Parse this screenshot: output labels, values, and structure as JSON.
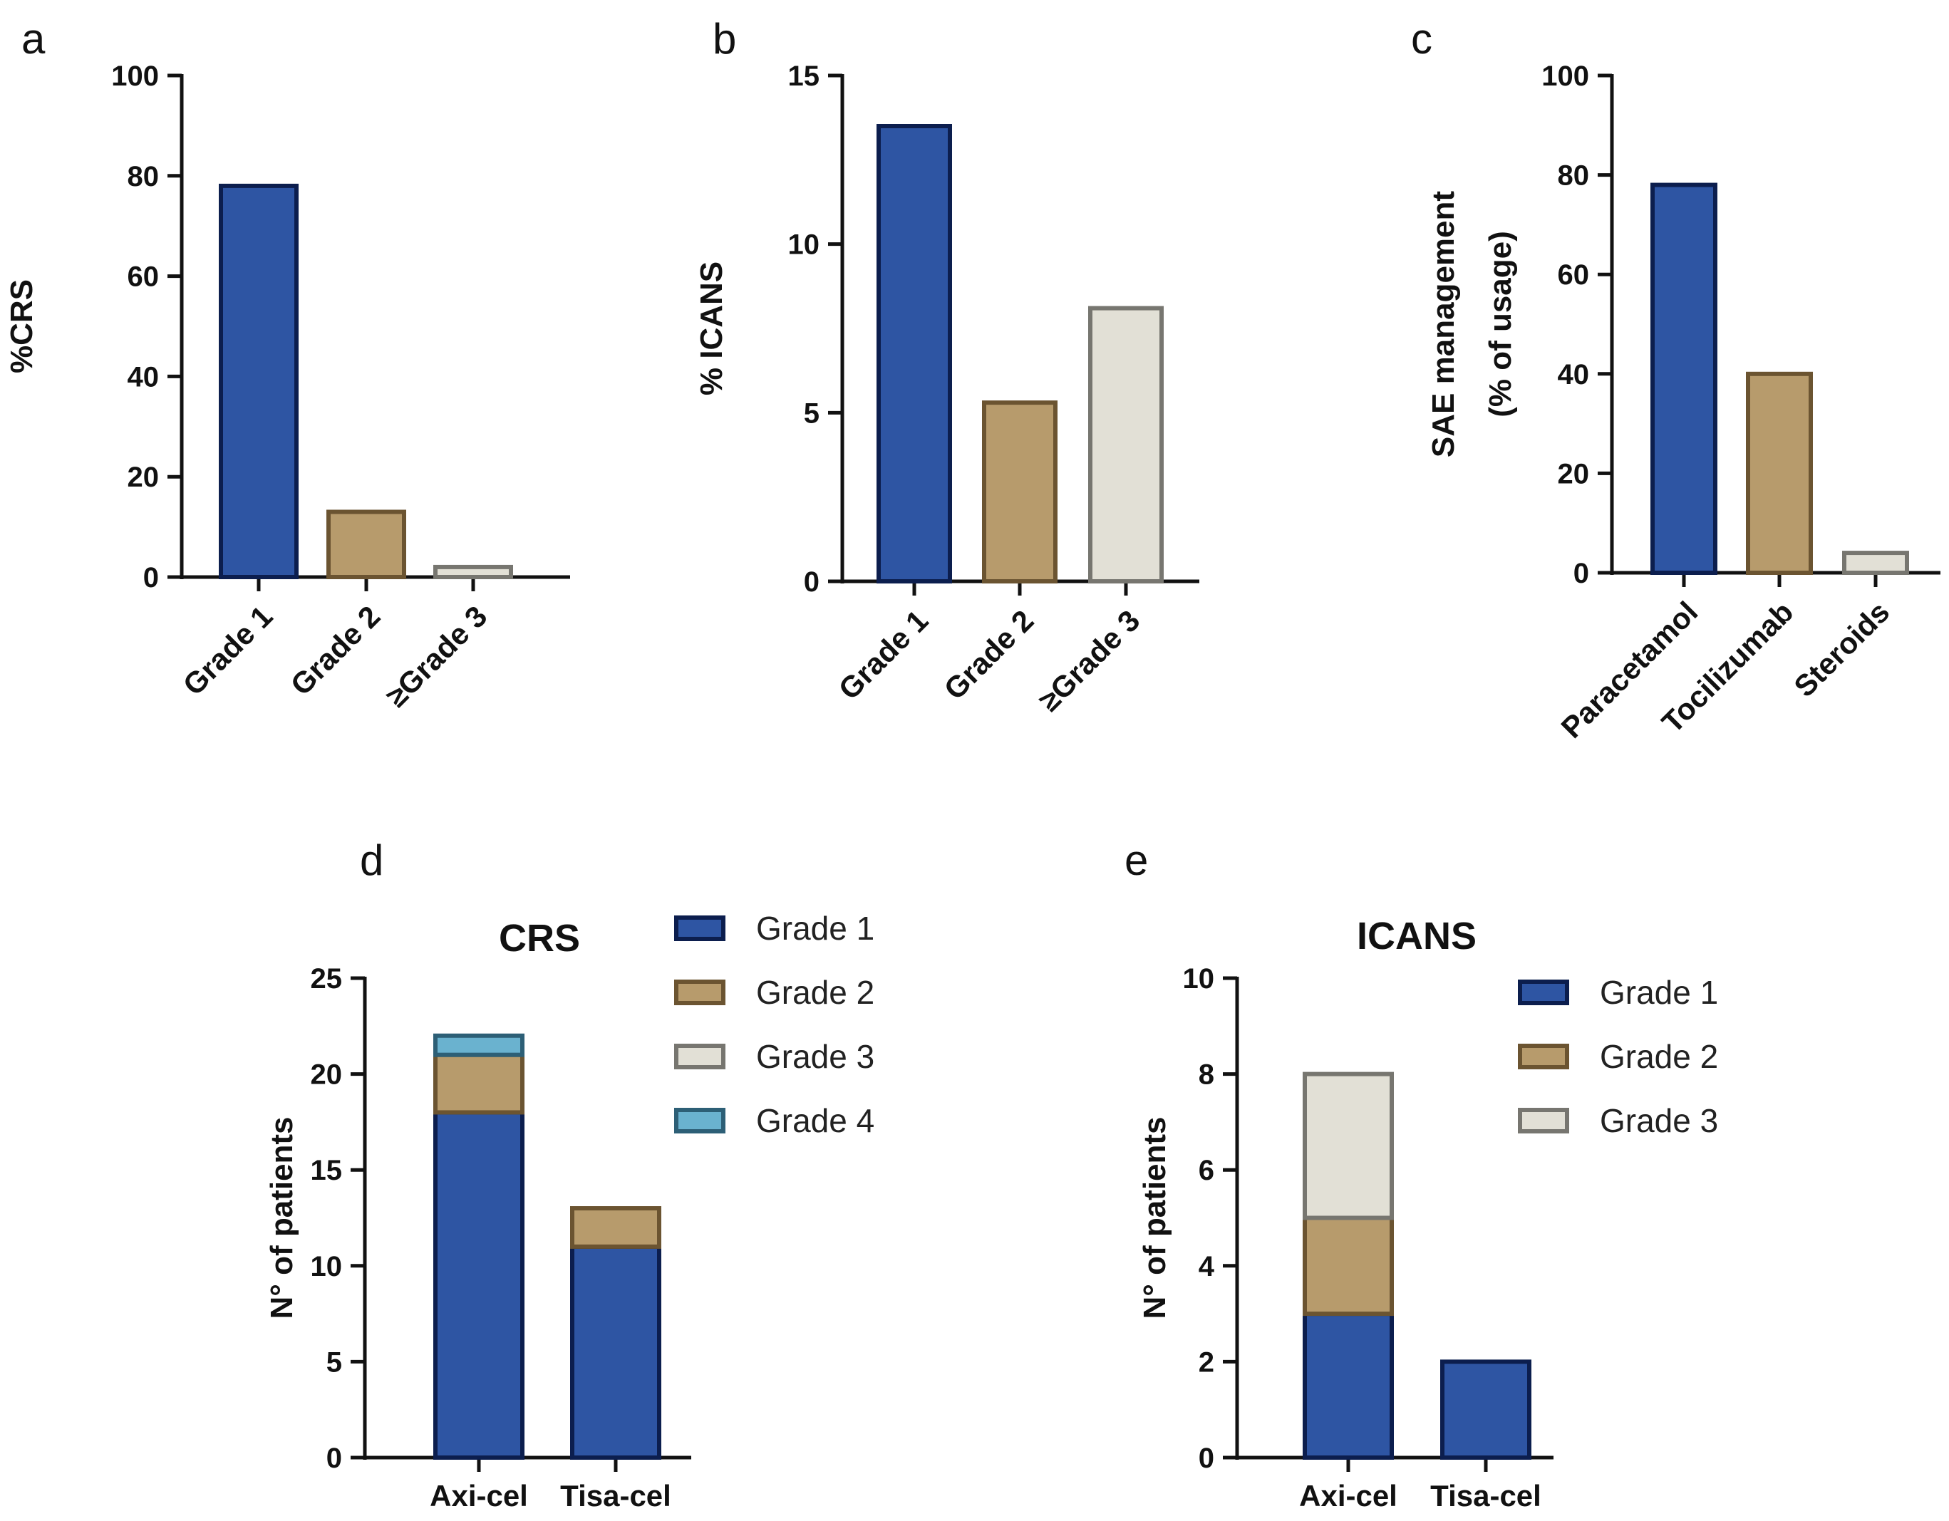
{
  "colors": {
    "grade1": "#2e55a3",
    "grade2": "#b79b6c",
    "grade3": "#e2e0d6",
    "grade4": "#6ab2cf",
    "grade1_edge": "#0c1e4e",
    "grade2_edge": "#6b5431",
    "grade3_edge": "#777670",
    "grade4_edge": "#2d5f76",
    "axis": "#111111"
  },
  "chart_data": [
    {
      "id": "a",
      "type": "bar",
      "panel_label": "a",
      "ylabel": "%CRS",
      "ylim": [
        0,
        100
      ],
      "yticks": [
        0,
        20,
        40,
        60,
        80,
        100
      ],
      "categories": [
        "Grade 1",
        "Grade 2",
        "≥Grade 3"
      ],
      "values": [
        78,
        13,
        2
      ],
      "series_keys": [
        "grade1",
        "grade2",
        "grade3"
      ]
    },
    {
      "id": "b",
      "type": "bar",
      "panel_label": "b",
      "ylabel": "% ICANS",
      "ylim": [
        0,
        15
      ],
      "yticks": [
        0,
        5,
        10,
        15
      ],
      "categories": [
        "Grade 1",
        "Grade 2",
        "≥Grade 3"
      ],
      "values": [
        13.5,
        5.3,
        8.1
      ],
      "series_keys": [
        "grade1",
        "grade2",
        "grade3"
      ]
    },
    {
      "id": "c",
      "type": "bar",
      "panel_label": "c",
      "ylabel_lines": [
        "SAE management",
        "(% of usage)"
      ],
      "ylim": [
        0,
        100
      ],
      "yticks": [
        0,
        20,
        40,
        60,
        80,
        100
      ],
      "categories": [
        "Paracetamol",
        "Tocilizumab",
        "Steroids"
      ],
      "values": [
        78,
        40,
        4
      ],
      "series_keys": [
        "grade1",
        "grade2",
        "grade3"
      ]
    },
    {
      "id": "d",
      "type": "bar",
      "stacked": true,
      "panel_label": "d",
      "title": "CRS",
      "ylabel": "N° of patients",
      "ylim": [
        0,
        25
      ],
      "yticks": [
        0,
        5,
        10,
        15,
        20,
        25
      ],
      "categories": [
        "Axi-cel",
        "Tisa-cel"
      ],
      "series": [
        {
          "name": "Grade 1",
          "key": "grade1",
          "values": [
            18,
            11
          ]
        },
        {
          "name": "Grade 2",
          "key": "grade2",
          "values": [
            3,
            2
          ]
        },
        {
          "name": "Grade 3",
          "key": "grade3",
          "values": [
            0,
            0
          ]
        },
        {
          "name": "Grade 4",
          "key": "grade4",
          "values": [
            1,
            0
          ]
        }
      ],
      "legend": "top-right"
    },
    {
      "id": "e",
      "type": "bar",
      "stacked": true,
      "panel_label": "e",
      "title": "ICANS",
      "ylabel": "N° of patients",
      "ylim": [
        0,
        10
      ],
      "yticks": [
        0,
        2,
        4,
        6,
        8,
        10
      ],
      "categories": [
        "Axi-cel",
        "Tisa-cel"
      ],
      "series": [
        {
          "name": "Grade 1",
          "key": "grade1",
          "values": [
            3,
            2
          ]
        },
        {
          "name": "Grade 2",
          "key": "grade2",
          "values": [
            2,
            0
          ]
        },
        {
          "name": "Grade 3",
          "key": "grade3",
          "values": [
            3,
            0
          ]
        }
      ],
      "legend": "top-right"
    }
  ]
}
